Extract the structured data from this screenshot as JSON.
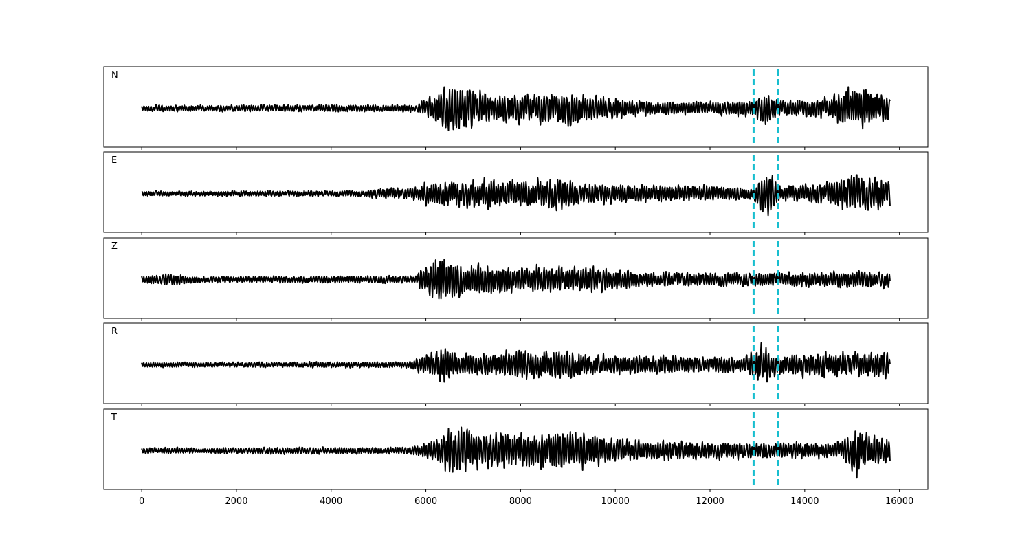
{
  "chart_data": {
    "type": "line",
    "panel_count": 5,
    "shared_x_axis": true,
    "xlim": [
      -800,
      16600
    ],
    "xticks": [
      0,
      2000,
      4000,
      6000,
      8000,
      10000,
      12000,
      14000,
      16000
    ],
    "xtick_labels": [
      "0",
      "2000",
      "4000",
      "6000",
      "8000",
      "10000",
      "12000",
      "14000",
      "16000"
    ],
    "x_range": [
      0,
      15800
    ],
    "y_ticks_shown": false,
    "grid": false,
    "trace_color": "#000000",
    "marker_color": "#17becf",
    "markers": [
      12920,
      13430
    ],
    "panels": [
      {
        "label": "N",
        "amplitude_scale": 1.0,
        "shape": [
          [
            0,
            0.12
          ],
          [
            5800,
            0.15
          ],
          [
            6000,
            0.35
          ],
          [
            6400,
            0.95
          ],
          [
            6900,
            0.85
          ],
          [
            7400,
            0.55
          ],
          [
            9200,
            0.65
          ],
          [
            9600,
            0.45
          ],
          [
            11000,
            0.25
          ],
          [
            12800,
            0.3
          ],
          [
            13200,
            0.7
          ],
          [
            13400,
            0.35
          ],
          [
            14500,
            0.4
          ],
          [
            14900,
            0.85
          ],
          [
            15800,
            0.55
          ]
        ]
      },
      {
        "label": "E",
        "amplitude_scale": 1.0,
        "shape": [
          [
            0,
            0.1
          ],
          [
            4700,
            0.12
          ],
          [
            5000,
            0.22
          ],
          [
            5800,
            0.25
          ],
          [
            6000,
            0.45
          ],
          [
            6500,
            0.55
          ],
          [
            8800,
            0.6
          ],
          [
            9500,
            0.4
          ],
          [
            12500,
            0.3
          ],
          [
            12900,
            0.25
          ],
          [
            13200,
            0.95
          ],
          [
            13500,
            0.3
          ],
          [
            14500,
            0.45
          ],
          [
            15100,
            0.8
          ],
          [
            15800,
            0.55
          ]
        ]
      },
      {
        "label": "Z",
        "amplitude_scale": 1.0,
        "shape": [
          [
            0,
            0.15
          ],
          [
            700,
            0.25
          ],
          [
            1200,
            0.12
          ],
          [
            5800,
            0.15
          ],
          [
            5900,
            0.5
          ],
          [
            6300,
            1.0
          ],
          [
            6700,
            0.7
          ],
          [
            7600,
            0.55
          ],
          [
            9500,
            0.5
          ],
          [
            10500,
            0.3
          ],
          [
            13000,
            0.25
          ],
          [
            15800,
            0.35
          ]
        ]
      },
      {
        "label": "R",
        "amplitude_scale": 1.0,
        "shape": [
          [
            0,
            0.1
          ],
          [
            5600,
            0.12
          ],
          [
            5900,
            0.35
          ],
          [
            6400,
            0.75
          ],
          [
            6700,
            0.45
          ],
          [
            8600,
            0.6
          ],
          [
            9500,
            0.4
          ],
          [
            12700,
            0.3
          ],
          [
            13100,
            0.9
          ],
          [
            13400,
            0.4
          ],
          [
            14000,
            0.45
          ],
          [
            15700,
            0.55
          ],
          [
            15800,
            0.3
          ]
        ]
      },
      {
        "label": "T",
        "amplitude_scale": 1.0,
        "shape": [
          [
            0,
            0.12
          ],
          [
            5700,
            0.15
          ],
          [
            6200,
            0.45
          ],
          [
            6500,
            0.95
          ],
          [
            7000,
            0.75
          ],
          [
            9400,
            0.7
          ],
          [
            10000,
            0.45
          ],
          [
            12800,
            0.3
          ],
          [
            14800,
            0.35
          ],
          [
            15100,
            1.0
          ],
          [
            15400,
            0.6
          ],
          [
            15800,
            0.55
          ]
        ]
      }
    ]
  }
}
